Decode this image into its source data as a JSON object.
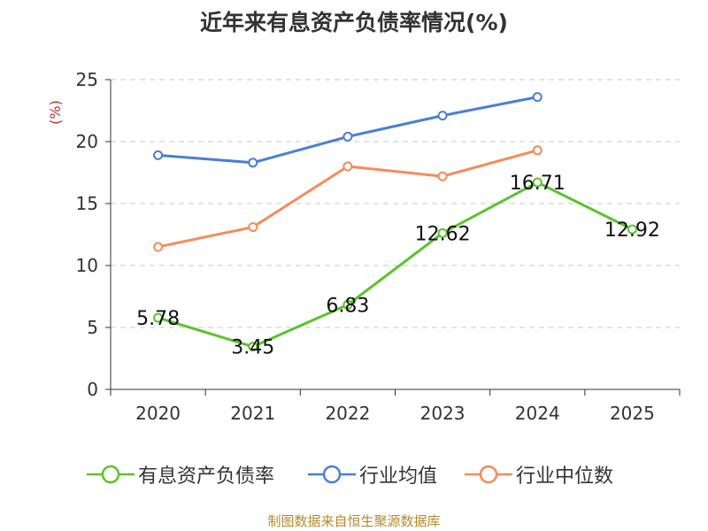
{
  "page": {
    "source": "制图数据来自恒生聚源数据库"
  },
  "chart_data": {
    "type": "line",
    "title": "近年来有息资产负债率情况(%)",
    "ylabel": "(%)",
    "xlabel": "",
    "categories": [
      "2020",
      "2021",
      "2022",
      "2023",
      "2024",
      "2025"
    ],
    "ylim": [
      0,
      25
    ],
    "yticks": [
      0,
      5,
      10,
      15,
      20,
      25
    ],
    "grid": "horizontal-dashed",
    "legend": "bottom",
    "series": [
      {
        "name": "有息资产负债率",
        "color": "#5cc22e",
        "values": [
          5.78,
          3.45,
          6.83,
          12.62,
          16.71,
          12.92
        ],
        "labels": [
          "5.78",
          "3.45",
          "6.83",
          "12.62",
          "16.71",
          "12.92"
        ]
      },
      {
        "name": "行业均值",
        "color": "#4a7fd8",
        "values": [
          18.9,
          18.3,
          20.4,
          22.1,
          23.6,
          null
        ]
      },
      {
        "name": "行业中位数",
        "color": "#f68b5a",
        "values": [
          11.5,
          13.1,
          18.0,
          17.2,
          19.3,
          null
        ]
      }
    ]
  }
}
